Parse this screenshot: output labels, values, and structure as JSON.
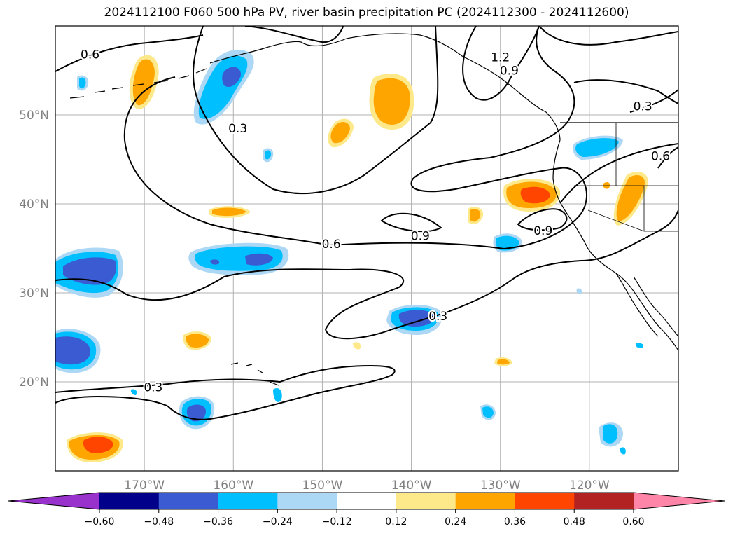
{
  "title": "2024112100 F060 500 hPa PV, river basin precipitation PC (2024112300 - 2024112600)",
  "lat_axis": [
    {
      "value": 50,
      "label": "50°N"
    },
    {
      "value": 40,
      "label": "40°N"
    },
    {
      "value": 30,
      "label": "30°N"
    },
    {
      "value": 20,
      "label": "20°N"
    }
  ],
  "lon_axis": [
    {
      "value": -170,
      "label": "170°W"
    },
    {
      "value": -160,
      "label": "160°W"
    },
    {
      "value": -150,
      "label": "150°W"
    },
    {
      "value": -140,
      "label": "140°W"
    },
    {
      "value": -130,
      "label": "130°W"
    },
    {
      "value": -120,
      "label": "120°W"
    }
  ],
  "map_extent": {
    "lon": [
      -180,
      -110
    ],
    "lat": [
      10,
      60
    ]
  },
  "gridlines": true,
  "colorbar": {
    "ticks": [
      "−0.60",
      "−0.48",
      "−0.36",
      "−0.24",
      "−0.12",
      "0.12",
      "0.24",
      "0.36",
      "0.48",
      "0.60"
    ],
    "colors": [
      "#9932cc",
      "#00008b",
      "#3a5bd1",
      "#00bfff",
      "#add8f5",
      "#ffffff",
      "#fde98a",
      "#ffa500",
      "#ff4500",
      "#b22222",
      "#ff85a8"
    ]
  },
  "contour_labels": [
    {
      "text": "0.6",
      "lon": -176.1,
      "lat": 56.8
    },
    {
      "text": "0.3",
      "lon": -159.5,
      "lat": 48.5
    },
    {
      "text": "1.2",
      "lon": -130.0,
      "lat": 56.5
    },
    {
      "text": "0.9",
      "lon": -129.0,
      "lat": 55.0
    },
    {
      "text": "0.3",
      "lon": -114.0,
      "lat": 51.0
    },
    {
      "text": "0.6",
      "lon": -112.0,
      "lat": 45.4
    },
    {
      "text": "0.9",
      "lon": -139.0,
      "lat": 36.4
    },
    {
      "text": "0.9",
      "lon": -125.2,
      "lat": 37.0
    },
    {
      "text": "0.6",
      "lon": -149.0,
      "lat": 35.5
    },
    {
      "text": "0.3",
      "lon": -137.0,
      "lat": 27.4
    },
    {
      "text": "0.3",
      "lon": -169.0,
      "lat": 19.4
    }
  ]
}
